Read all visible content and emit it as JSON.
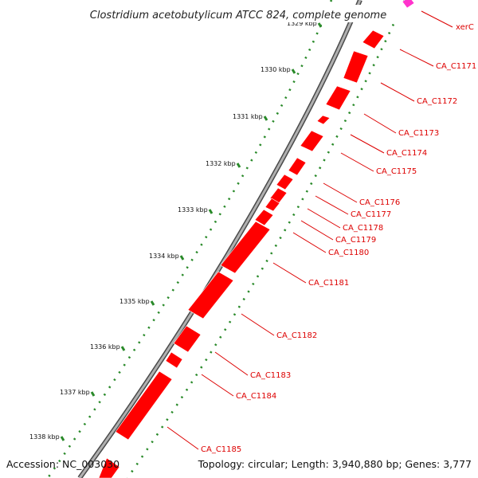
{
  "title": "Clostridium acetobutylicum ATCC 824, complete genome",
  "footer": {
    "accession": "Accession: NC_003030",
    "summary": "Topology: circular; Length: 3,940,880 bp; Genes: 3,777"
  },
  "colors": {
    "cds": "#ff0000",
    "cds_highlight": "#ff33cc",
    "backbone": "#808080",
    "gc_skew_dots": "#2a8a2a",
    "gene_label": "#dd0000"
  },
  "axis_ticks": [
    {
      "label": "1329 kbp"
    },
    {
      "label": "1330 kbp"
    },
    {
      "label": "1331 kbp"
    },
    {
      "label": "1332 kbp"
    },
    {
      "label": "1333 kbp"
    },
    {
      "label": "1334 kbp"
    },
    {
      "label": "1335 kbp"
    },
    {
      "label": "1336 kbp"
    },
    {
      "label": "1337 kbp"
    },
    {
      "label": "1338 kbp"
    }
  ],
  "gene_labels": [
    {
      "name": "xerC"
    },
    {
      "name": "CA_C1171"
    },
    {
      "name": "CA_C1172"
    },
    {
      "name": "CA_C1173"
    },
    {
      "name": "CA_C1174"
    },
    {
      "name": "CA_C1175"
    },
    {
      "name": "CA_C1176"
    },
    {
      "name": "CA_C1177"
    },
    {
      "name": "CA_C1178"
    },
    {
      "name": "CA_C1179"
    },
    {
      "name": "CA_C1180"
    },
    {
      "name": "CA_C1181"
    },
    {
      "name": "CA_C1182"
    },
    {
      "name": "CA_C1183"
    },
    {
      "name": "CA_C1184"
    },
    {
      "name": "CA_C1185"
    }
  ]
}
